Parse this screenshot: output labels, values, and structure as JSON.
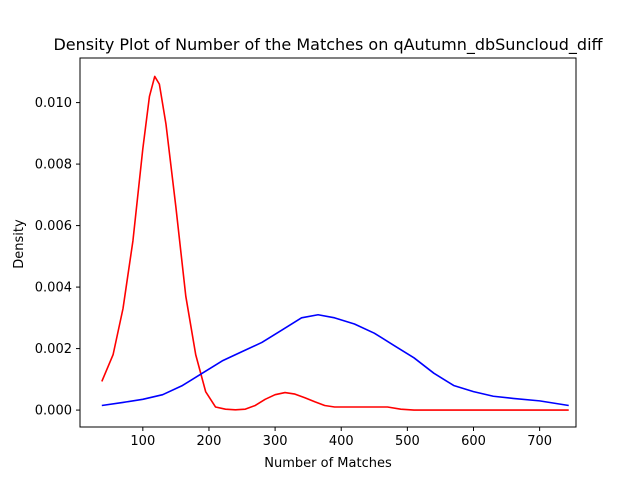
{
  "chart_data": {
    "type": "line",
    "title": "Density Plot of Number of the Matches on qAutumn_dbSuncloud_diff",
    "xlabel": "Number of Matches",
    "ylabel": "Density",
    "xlim": [
      5,
      755
    ],
    "ylim": [
      -0.00055,
      0.01145
    ],
    "xticks": [
      100,
      200,
      300,
      400,
      500,
      600,
      700
    ],
    "yticks": [
      0.0,
      0.002,
      0.004,
      0.006,
      0.008,
      0.01
    ],
    "ytick_labels": [
      "0.000",
      "0.002",
      "0.004",
      "0.006",
      "0.008",
      "0.010"
    ],
    "grid": false,
    "series": [
      {
        "color": "#ff0000",
        "points": [
          [
            38,
            0.00093
          ],
          [
            55,
            0.0018
          ],
          [
            70,
            0.0033
          ],
          [
            85,
            0.0055
          ],
          [
            100,
            0.0085
          ],
          [
            110,
            0.0102
          ],
          [
            118,
            0.01085
          ],
          [
            125,
            0.0106
          ],
          [
            135,
            0.0093
          ],
          [
            150,
            0.0066
          ],
          [
            165,
            0.0037
          ],
          [
            180,
            0.0018
          ],
          [
            195,
            0.0006
          ],
          [
            210,
            0.0001
          ],
          [
            225,
            3e-05
          ],
          [
            240,
            1e-05
          ],
          [
            255,
            3e-05
          ],
          [
            270,
            0.00015
          ],
          [
            285,
            0.00035
          ],
          [
            300,
            0.0005
          ],
          [
            315,
            0.00057
          ],
          [
            330,
            0.00052
          ],
          [
            345,
            0.0004
          ],
          [
            360,
            0.00027
          ],
          [
            375,
            0.00015
          ],
          [
            390,
            0.0001
          ],
          [
            410,
            0.0001
          ],
          [
            430,
            0.0001
          ],
          [
            450,
            0.0001
          ],
          [
            470,
            0.0001
          ],
          [
            490,
            3e-05
          ],
          [
            510,
            0.0
          ],
          [
            560,
            0.0
          ],
          [
            620,
            0.0
          ],
          [
            680,
            0.0
          ],
          [
            744,
            0.0
          ]
        ]
      },
      {
        "color": "#0000ff",
        "points": [
          [
            38,
            0.00015
          ],
          [
            70,
            0.00025
          ],
          [
            100,
            0.00035
          ],
          [
            130,
            0.0005
          ],
          [
            160,
            0.0008
          ],
          [
            190,
            0.0012
          ],
          [
            220,
            0.0016
          ],
          [
            250,
            0.0019
          ],
          [
            280,
            0.0022
          ],
          [
            310,
            0.0026
          ],
          [
            340,
            0.003
          ],
          [
            365,
            0.0031
          ],
          [
            390,
            0.003
          ],
          [
            420,
            0.0028
          ],
          [
            450,
            0.0025
          ],
          [
            480,
            0.0021
          ],
          [
            510,
            0.0017
          ],
          [
            540,
            0.0012
          ],
          [
            570,
            0.0008
          ],
          [
            600,
            0.0006
          ],
          [
            630,
            0.00045
          ],
          [
            660,
            0.00038
          ],
          [
            700,
            0.0003
          ],
          [
            744,
            0.00015
          ]
        ]
      }
    ]
  }
}
